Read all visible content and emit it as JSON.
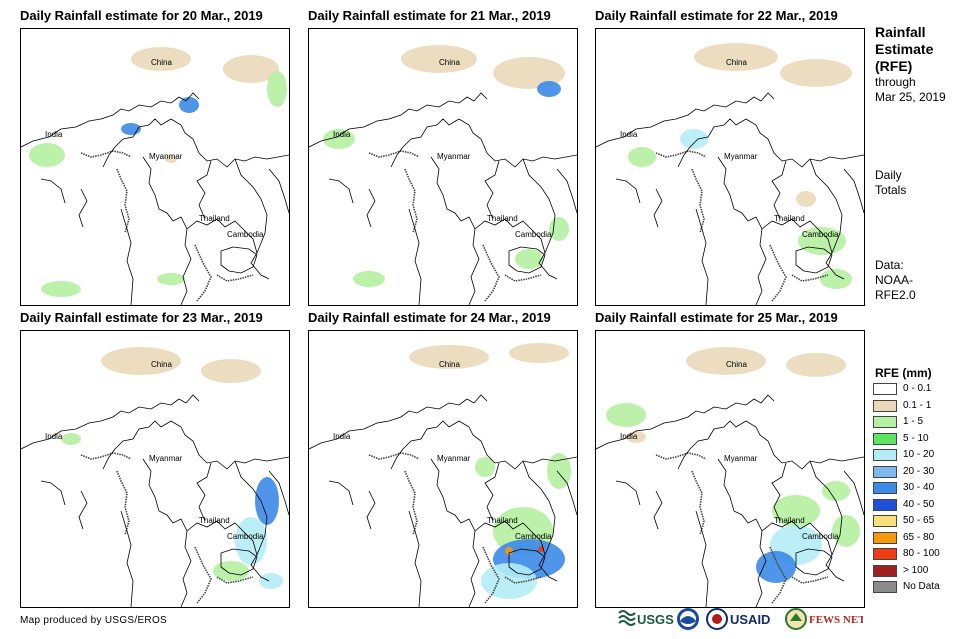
{
  "panels": [
    {
      "title": "Daily Rainfall estimate for 20 Mar., 2019",
      "labels": [
        "China",
        "India",
        "Myanmar",
        "Thailand",
        "Cambodia"
      ]
    },
    {
      "title": "Daily Rainfall estimate for 21 Mar., 2019",
      "labels": [
        "China",
        "India",
        "Myanmar",
        "Thailand",
        "Cambodia"
      ]
    },
    {
      "title": "Daily Rainfall estimate for 22 Mar., 2019",
      "labels": [
        "China",
        "India",
        "Myanmar",
        "Thailand",
        "Cambodia"
      ]
    },
    {
      "title": "Daily Rainfall estimate for 23 Mar., 2019",
      "labels": [
        "China",
        "India",
        "Myanmar",
        "Thailand",
        "Cambodia"
      ]
    },
    {
      "title": "Daily Rainfall estimate for 24 Mar., 2019",
      "labels": [
        "China",
        "India",
        "Myanmar",
        "Thailand",
        "Cambodia"
      ]
    },
    {
      "title": "Daily Rainfall estimate for 25 Mar., 2019",
      "labels": [
        "China",
        "India",
        "Myanmar",
        "Thailand",
        "Cambodia"
      ]
    }
  ],
  "sidebar": {
    "title_line1": "Rainfall",
    "title_line2": "Estimate",
    "title_line3": "(RFE)",
    "through": "through",
    "date": "Mar 25, 2019",
    "totals_line1": "Daily",
    "totals_line2": "Totals",
    "data_line1": "Data:",
    "data_line2": "NOAA-",
    "data_line3": "RFE2.0"
  },
  "legend": {
    "title": "RFE (mm)",
    "items": [
      {
        "label": "0 - 0.1",
        "color": "#ffffff"
      },
      {
        "label": "0.1 - 1",
        "color": "#ead9b9"
      },
      {
        "label": "1 - 5",
        "color": "#b4f0a0"
      },
      {
        "label": "5 - 10",
        "color": "#5ee45e"
      },
      {
        "label": "10 - 20",
        "color": "#b4ecf5"
      },
      {
        "label": "20 - 30",
        "color": "#7db8ee"
      },
      {
        "label": "30 - 40",
        "color": "#3c8ae8"
      },
      {
        "label": "40 - 50",
        "color": "#1f50d8"
      },
      {
        "label": "50 - 65",
        "color": "#f7e07a"
      },
      {
        "label": "65 - 80",
        "color": "#f59a0a"
      },
      {
        "label": "80 - 100",
        "color": "#f03c14"
      },
      {
        "label": "> 100",
        "color": "#a02020"
      },
      {
        "label": "No Data",
        "color": "#8c8c8c"
      }
    ]
  },
  "footer": {
    "credit": "Map produced by USGS/EROS"
  },
  "logos": {
    "usgs": "USGS",
    "usaid": "USAID",
    "fewsnet": "FEWS NET"
  },
  "colors": {
    "tan": "#ead9b9",
    "lightgreen": "#b4f0a0",
    "green": "#5ee45e",
    "lightblue": "#b4ecf5",
    "blue": "#3c8ae8",
    "darkblue": "#1f50d8",
    "orange": "#f59a0a",
    "red": "#f03c14",
    "border": "#000000"
  }
}
